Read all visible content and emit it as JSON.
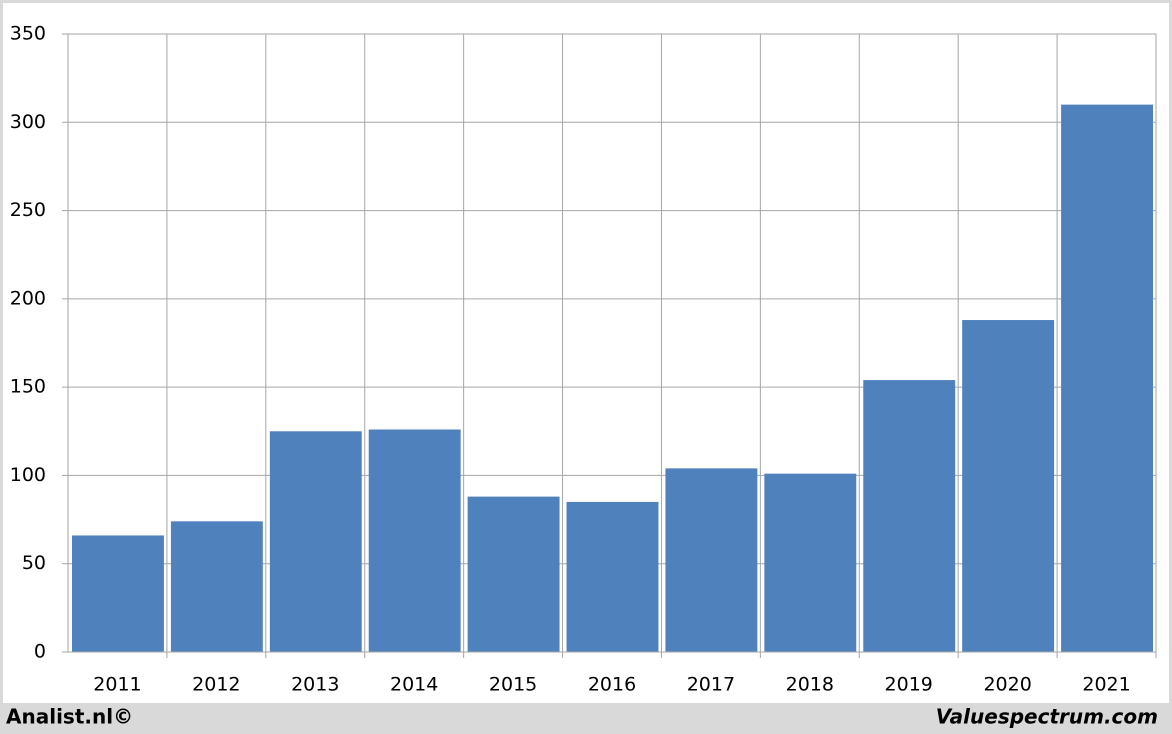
{
  "chart_data": {
    "type": "bar",
    "categories": [
      "2011",
      "2012",
      "2013",
      "2014",
      "2015",
      "2016",
      "2017",
      "2018",
      "2019",
      "2020",
      "2021"
    ],
    "values": [
      66,
      74,
      125,
      126,
      88,
      85,
      104,
      101,
      154,
      188,
      310
    ],
    "color": "#4f81bd",
    "ylim": [
      0,
      350
    ],
    "yticks": [
      0,
      50,
      100,
      150,
      200,
      250,
      300,
      350
    ],
    "grid": true,
    "source": "Analist.nl©",
    "watermark": "Valuespectrum.com"
  }
}
